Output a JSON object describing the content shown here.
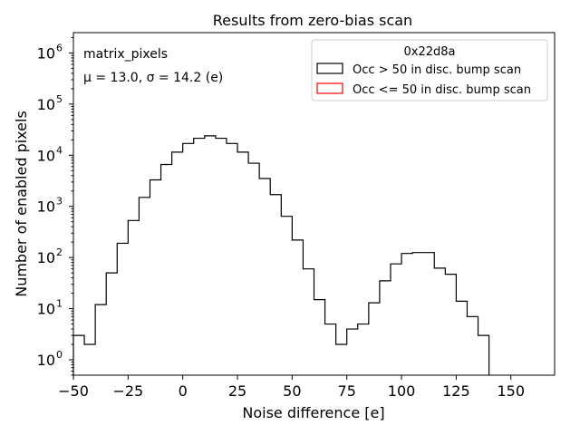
{
  "chart_data": {
    "type": "histogram",
    "title": "Results from zero-bias scan",
    "xlabel": "Noise difference [e]",
    "ylabel": "Number of enabled pixels",
    "xlim": [
      -50,
      170
    ],
    "ylim": [
      0.5,
      2500000
    ],
    "yscale": "log",
    "grid": false,
    "xticks": [
      -50,
      -25,
      0,
      25,
      50,
      75,
      100,
      125,
      150
    ],
    "xtick_labels": [
      "−50",
      "−25",
      "0",
      "25",
      "50",
      "75",
      "100",
      "125",
      "150"
    ],
    "yticks": [
      1,
      10,
      100,
      1000,
      10000,
      100000,
      1000000
    ],
    "ytick_labels": [
      "10",
      "10",
      "10",
      "10",
      "10",
      "10",
      "10"
    ],
    "ytick_exponents": [
      "0",
      "1",
      "2",
      "3",
      "4",
      "5",
      "6"
    ],
    "annotations": {
      "line1": "matrix_pixels",
      "line2": "μ = 13.0, σ = 14.2 (e)"
    },
    "legend": {
      "title": "0x22d8a",
      "position": "top-right",
      "entries": [
        {
          "label": "Occ > 50 in disc. bump scan",
          "color": "#000000"
        },
        {
          "label": "Occ <= 50 in disc. bump scan",
          "color": "#ff0000"
        }
      ]
    },
    "bin_width": 5,
    "series": [
      {
        "color": "#000000",
        "bins": [
          [
            -50,
            3
          ],
          [
            -45,
            2
          ],
          [
            -40,
            12
          ],
          [
            -35,
            50
          ],
          [
            -30,
            190
          ],
          [
            -25,
            530
          ],
          [
            -20,
            1500
          ],
          [
            -15,
            3300
          ],
          [
            -10,
            6600
          ],
          [
            -5,
            11500
          ],
          [
            0,
            17000
          ],
          [
            5,
            21500
          ],
          [
            10,
            24000
          ],
          [
            15,
            21500
          ],
          [
            20,
            17000
          ],
          [
            25,
            11500
          ],
          [
            30,
            7000
          ],
          [
            35,
            3500
          ],
          [
            40,
            1700
          ],
          [
            45,
            640
          ],
          [
            50,
            220
          ],
          [
            55,
            60
          ],
          [
            60,
            15
          ],
          [
            65,
            5
          ],
          [
            70,
            2
          ],
          [
            75,
            4
          ],
          [
            80,
            5
          ],
          [
            85,
            13
          ],
          [
            90,
            35
          ],
          [
            95,
            75
          ],
          [
            100,
            120
          ],
          [
            105,
            125
          ],
          [
            110,
            125
          ],
          [
            115,
            62
          ],
          [
            120,
            47
          ],
          [
            125,
            14
          ],
          [
            130,
            7
          ],
          [
            135,
            3
          ]
        ],
        "end": 140
      },
      {
        "color": "#ff0000",
        "bins": []
      }
    ]
  }
}
